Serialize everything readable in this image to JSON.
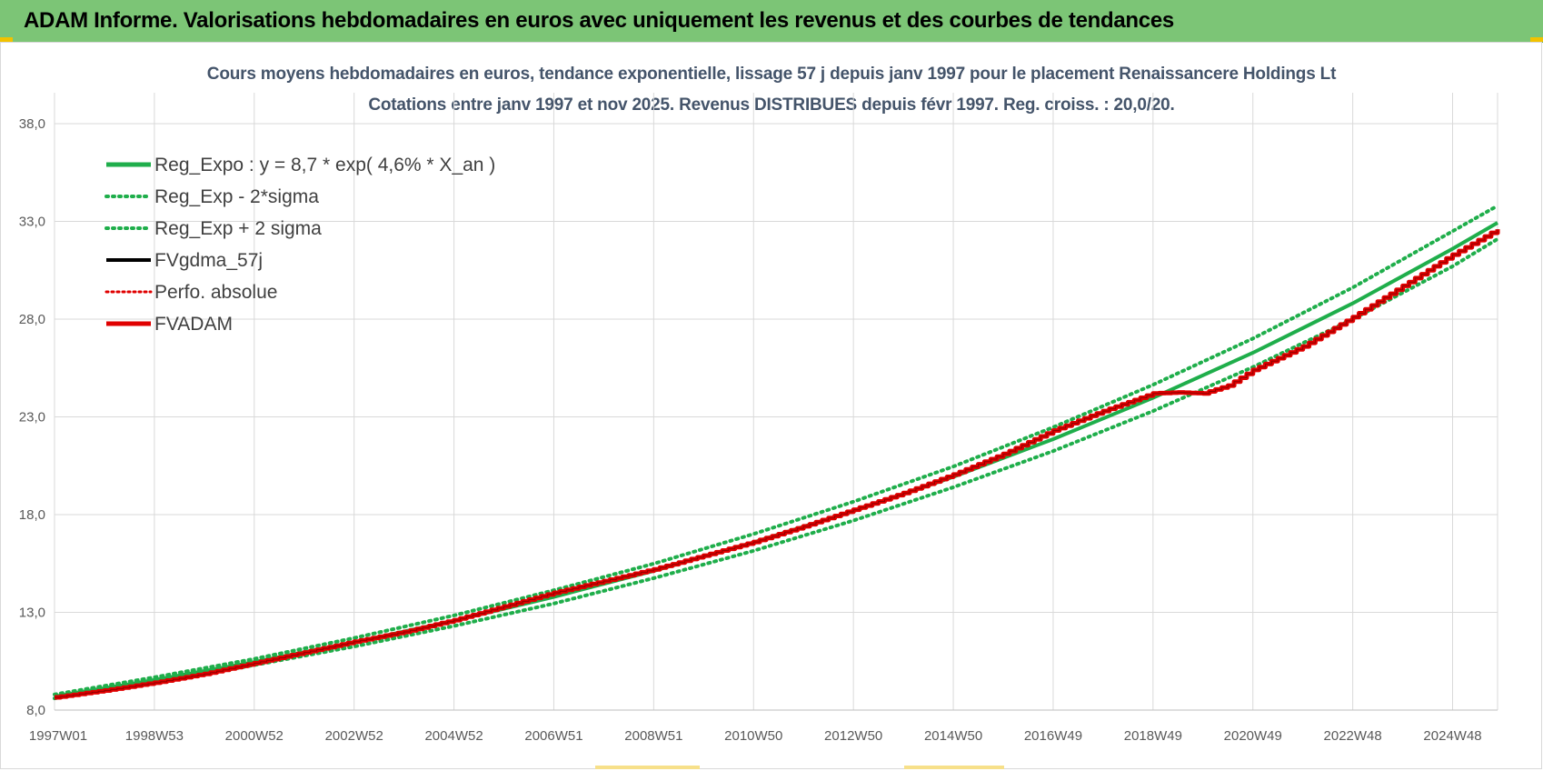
{
  "header": {
    "title": "ADAM Informe. Valorisations hebdomadaires en euros avec uniquement les revenus et des courbes de tendances"
  },
  "colors": {
    "banner": "#7cc576",
    "reg_expo": "#1fae4b",
    "sigma": "#1fae4b",
    "fvgdma": "#000000",
    "perfo": "#e00000",
    "fvadam": "#e00000",
    "grid": "#d9d9d9"
  },
  "chart_data": {
    "type": "line",
    "title_line1": "Cours moyens hebdomadaires en euros, tendance exponentielle, lissage 57 j depuis janv 1997 pour le placement Renaissancere Holdings Lt",
    "title_line2": "Cotations entre janv 1997 et nov 2025. Revenus  DISTRIBUES depuis févr 1997. Reg.  croiss. : 20,0/20.",
    "xlabel": "",
    "ylabel": "",
    "ylim": [
      8.0,
      40.0
    ],
    "yticks": [
      "8,0",
      "13,0",
      "18,0",
      "23,0",
      "28,0",
      "33,0",
      "38,0"
    ],
    "ytick_values": [
      8,
      13,
      18,
      23,
      28,
      33,
      38
    ],
    "xticks": [
      "1997W01",
      "1998W53",
      "2000W52",
      "2002W52",
      "2004W52",
      "2006W51",
      "2008W51",
      "2010W50",
      "2012W50",
      "2014W50",
      "2016W49",
      "2018W49",
      "2020W49",
      "2022W48",
      "2024W48"
    ],
    "xtick_years": [
      1997.0,
      1999.0,
      2001.0,
      2003.0,
      2005.0,
      2007.0,
      2009.0,
      2011.0,
      2013.0,
      2015.0,
      2017.0,
      2019.0,
      2021.0,
      2023.0,
      2025.0
    ],
    "xlim": [
      1997.0,
      2025.9
    ],
    "grid": true,
    "legend_position": "top-left",
    "legend": [
      {
        "key": "reg_expo",
        "label": "Reg_Expo : y = 8,7 * exp( 4,6% *  X_an )",
        "style": "solid"
      },
      {
        "key": "reg_minus",
        "label": "Reg_Exp - 2*sigma",
        "style": "dotted"
      },
      {
        "key": "reg_plus",
        "label": "Reg_Exp + 2 sigma",
        "style": "dotted"
      },
      {
        "key": "fvgdma",
        "label": "FVgdma_57j",
        "style": "solid"
      },
      {
        "key": "perfo",
        "label": "Perfo. absolue",
        "style": "dotted"
      },
      {
        "key": "fvadam",
        "label": "FVADAM",
        "style": "solid"
      }
    ],
    "series": [
      {
        "key": "reg_expo",
        "x": [
          1997,
          1999,
          2001,
          2003,
          2005,
          2007,
          2009,
          2011,
          2013,
          2015,
          2017,
          2019,
          2021,
          2023,
          2025,
          2025.9
        ],
        "values": [
          8.7,
          9.54,
          10.46,
          11.47,
          12.57,
          13.79,
          15.12,
          16.58,
          18.18,
          19.93,
          21.86,
          23.97,
          26.28,
          28.81,
          31.6,
          32.93
        ]
      },
      {
        "key": "reg_minus",
        "x": [
          1997,
          1999,
          2001,
          2003,
          2005,
          2007,
          2009,
          2011,
          2013,
          2015,
          2017,
          2019,
          2021,
          2023,
          2025,
          2025.9
        ],
        "values": [
          8.6,
          9.4,
          10.3,
          11.25,
          12.3,
          13.45,
          14.75,
          16.15,
          17.7,
          19.4,
          21.25,
          23.3,
          25.55,
          28.0,
          30.7,
          32.1
        ]
      },
      {
        "key": "reg_plus",
        "x": [
          1997,
          1999,
          2001,
          2003,
          2005,
          2007,
          2009,
          2011,
          2013,
          2015,
          2017,
          2019,
          2021,
          2023,
          2025,
          2025.9
        ],
        "values": [
          8.8,
          9.68,
          10.62,
          11.69,
          12.84,
          14.13,
          15.49,
          17.01,
          18.66,
          20.46,
          22.47,
          24.64,
          27.01,
          29.62,
          32.5,
          33.8
        ]
      },
      {
        "key": "fvadam",
        "x": [
          1997,
          1998,
          1999,
          2000,
          2001,
          2002,
          2003,
          2004,
          2005,
          2006,
          2007,
          2008,
          2009,
          2010,
          2011,
          2012,
          2013,
          2014,
          2015,
          2016,
          2017,
          2018,
          2019,
          2019.5,
          2020,
          2020.5,
          2021,
          2022,
          2023,
          2024,
          2025,
          2025.9
        ],
        "values": [
          8.65,
          9.0,
          9.4,
          9.85,
          10.4,
          10.95,
          11.5,
          12.0,
          12.6,
          13.3,
          14.0,
          14.6,
          15.2,
          15.9,
          16.6,
          17.4,
          18.25,
          19.1,
          20.05,
          21.1,
          22.3,
          23.3,
          24.2,
          24.25,
          24.2,
          24.6,
          25.4,
          26.6,
          28.1,
          29.7,
          31.3,
          32.6
        ]
      }
    ]
  }
}
